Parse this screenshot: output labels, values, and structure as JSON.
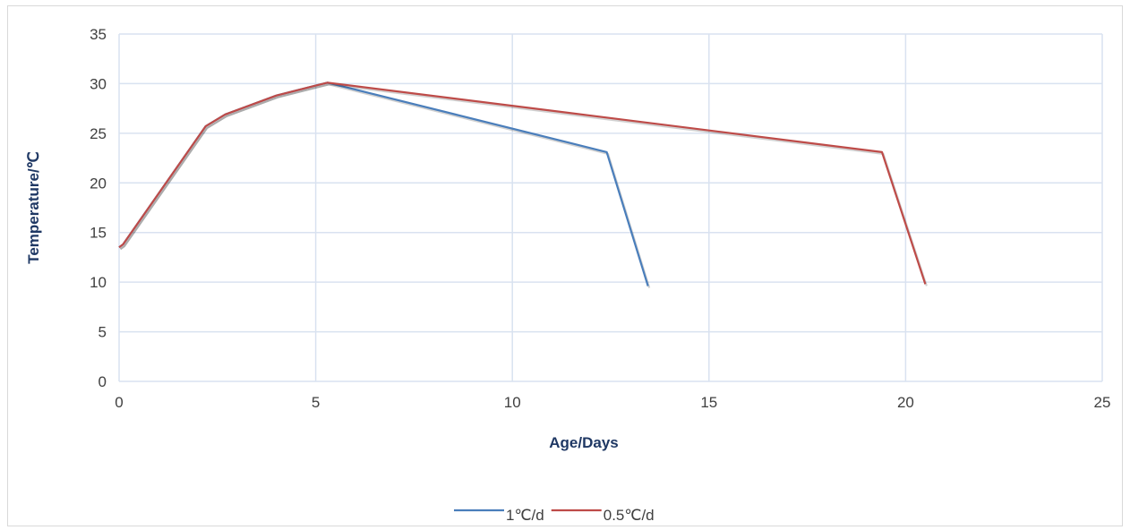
{
  "chart_data": {
    "type": "line",
    "title": "",
    "xlabel": "Age/Days",
    "ylabel": "Temperature/℃",
    "xlim": [
      0,
      25
    ],
    "ylim": [
      0,
      35
    ],
    "x_ticks": [
      0,
      5,
      10,
      15,
      20,
      25
    ],
    "y_ticks": [
      0,
      5,
      10,
      15,
      20,
      25,
      30,
      35
    ],
    "grid": true,
    "legend_position": "bottom",
    "series": [
      {
        "name": "1℃/d",
        "color": "#4a7ebb",
        "points": [
          [
            0,
            13.5
          ],
          [
            0.1,
            13.8
          ],
          [
            2.2,
            25.7
          ],
          [
            2.7,
            26.9
          ],
          [
            4.0,
            28.8
          ],
          [
            5.0,
            29.8
          ],
          [
            5.3,
            30.1
          ],
          [
            12.4,
            23.1
          ],
          [
            13.45,
            9.6
          ]
        ]
      },
      {
        "name": "0.5℃/d",
        "color": "#be4b48",
        "points": [
          [
            0,
            13.5
          ],
          [
            0.1,
            13.8
          ],
          [
            2.2,
            25.7
          ],
          [
            2.7,
            26.9
          ],
          [
            4.0,
            28.8
          ],
          [
            5.0,
            29.8
          ],
          [
            5.3,
            30.1
          ],
          [
            19.4,
            23.1
          ],
          [
            20.5,
            9.8
          ]
        ]
      }
    ]
  }
}
